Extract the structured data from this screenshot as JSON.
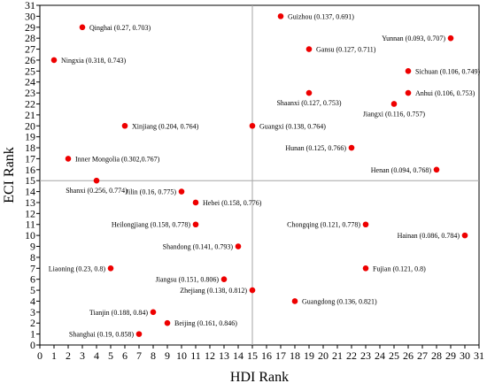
{
  "chart_data": {
    "type": "scatter",
    "xlabel": "HDI Rank",
    "ylabel": "ECI Rank",
    "xlim": [
      0,
      31
    ],
    "ylim": [
      0,
      31
    ],
    "x_ticks": [
      "0",
      "1",
      "2",
      "3",
      "4",
      "5",
      "6",
      "7",
      "8",
      "9",
      "10",
      "11",
      "12",
      "13",
      "14",
      "15",
      "16",
      "17",
      "18",
      "19",
      "20",
      "21",
      "22",
      "23",
      "24",
      "25",
      "26",
      "27",
      "28",
      "29",
      "30",
      "31"
    ],
    "y_ticks": [
      "0",
      "1",
      "2",
      "3",
      "4",
      "5",
      "6",
      "7",
      "8",
      "9",
      "10",
      "11",
      "12",
      "13",
      "14",
      "15",
      "16",
      "17",
      "18",
      "19",
      "20",
      "21",
      "22",
      "23",
      "24",
      "25",
      "26",
      "27",
      "28",
      "29",
      "30",
      "31"
    ],
    "reference_lines": {
      "x": 15,
      "y": 15
    },
    "point_color": "#ee0000",
    "grid": false,
    "points": [
      {
        "label": "Guizhou (0.137, 0.691)",
        "x": 17,
        "y": 30,
        "pos": "right"
      },
      {
        "label": "Qinghai (0.27, 0.703)",
        "x": 3,
        "y": 29,
        "pos": "right"
      },
      {
        "label": "Yunnan (0.093, 0.707)",
        "x": 29,
        "y": 28,
        "pos": "left"
      },
      {
        "label": "Gansu (0.127, 0.711)",
        "x": 19,
        "y": 27,
        "pos": "right"
      },
      {
        "label": "Ningxia (0.318, 0.743)",
        "x": 1,
        "y": 26,
        "pos": "right"
      },
      {
        "label": "Sichuan (0.106, 0.749)",
        "x": 26,
        "y": 25,
        "pos": "right"
      },
      {
        "label": "Shaanxi (0.127, 0.753)",
        "x": 19,
        "y": 23,
        "pos": "below"
      },
      {
        "label": "Anhui (0.106, 0.753)",
        "x": 26,
        "y": 23,
        "pos": "right"
      },
      {
        "label": "Jiangxi (0.116, 0.757)",
        "x": 25,
        "y": 22,
        "pos": "below"
      },
      {
        "label": "Xinjiang (0.204, 0.764)",
        "x": 6,
        "y": 20,
        "pos": "right"
      },
      {
        "label": "Guangxi (0.138, 0.764)",
        "x": 15,
        "y": 20,
        "pos": "right"
      },
      {
        "label": "Hunan (0.125, 0.766)",
        "x": 22,
        "y": 18,
        "pos": "left"
      },
      {
        "label": "Inner Mongolia (0.302,0.767)",
        "x": 2,
        "y": 17,
        "pos": "right"
      },
      {
        "label": "Henan (0.094, 0.768)",
        "x": 28,
        "y": 16,
        "pos": "left"
      },
      {
        "label": "Shanxi (0.256, 0.774)",
        "x": 4,
        "y": 15,
        "pos": "below"
      },
      {
        "label": "Jilin (0.16, 0.775)",
        "x": 10,
        "y": 14,
        "pos": "left"
      },
      {
        "label": "Hebei (0.158, 0.776)",
        "x": 11,
        "y": 13,
        "pos": "right"
      },
      {
        "label": "Heilongjiang (0.158, 0.778)",
        "x": 11,
        "y": 11,
        "pos": "left"
      },
      {
        "label": "Chongqing (0.121, 0.778)",
        "x": 23,
        "y": 11,
        "pos": "left"
      },
      {
        "label": "Hainan (0.086, 0.784)",
        "x": 30,
        "y": 10,
        "pos": "left"
      },
      {
        "label": "Shandong (0.141, 0.793)",
        "x": 14,
        "y": 9,
        "pos": "left"
      },
      {
        "label": "Liaoning (0.23, 0.8)",
        "x": 5,
        "y": 7,
        "pos": "left"
      },
      {
        "label": "Fujian (0.121, 0.8)",
        "x": 23,
        "y": 7,
        "pos": "right"
      },
      {
        "label": "Jiangsu (0.151, 0.806)",
        "x": 13,
        "y": 6,
        "pos": "left"
      },
      {
        "label": "Zhejiang (0.138, 0.812)",
        "x": 15,
        "y": 5,
        "pos": "left"
      },
      {
        "label": "Guangdong (0.136, 0.821)",
        "x": 18,
        "y": 4,
        "pos": "right"
      },
      {
        "label": "Tianjin (0.188, 0.84)",
        "x": 8,
        "y": 3,
        "pos": "left"
      },
      {
        "label": "Beijing (0.161, 0.846)",
        "x": 9,
        "y": 2,
        "pos": "right"
      },
      {
        "label": "Shanghai (0.19, 0.858)",
        "x": 7,
        "y": 1,
        "pos": "left"
      }
    ]
  }
}
